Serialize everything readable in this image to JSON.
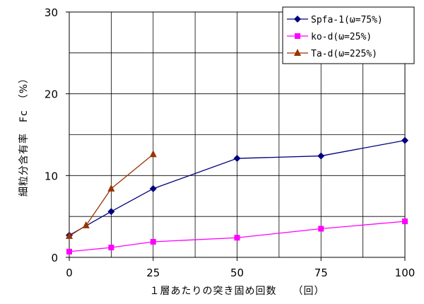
{
  "chart_data": {
    "type": "line",
    "title": "",
    "xlabel": "１層あたりの突き固め回数　　（回）",
    "ylabel": "細粒分含有率　Fc　（%）",
    "xlim": [
      0,
      100
    ],
    "ylim": [
      0,
      30
    ],
    "x_ticks": [
      "0",
      "25",
      "50",
      "75",
      "100"
    ],
    "y_ticks": [
      "0",
      "10",
      "20",
      "30"
    ],
    "grid": true,
    "legend_position": "top-right",
    "series": [
      {
        "name": "Spfa-1(ω=75%)",
        "color": "#000080",
        "marker": "diamond",
        "x": [
          0,
          12.5,
          25,
          50,
          75,
          100
        ],
        "y": [
          2.7,
          5.6,
          8.4,
          12.1,
          12.4,
          14.3
        ]
      },
      {
        "name": "ko-d(ω=25%)",
        "color": "#ff00ff",
        "marker": "square",
        "x": [
          0,
          12.5,
          25,
          50,
          75,
          100
        ],
        "y": [
          0.7,
          1.2,
          1.9,
          2.4,
          3.5,
          4.4
        ]
      },
      {
        "name": "Ta-d(ω=225%)",
        "color": "#993300",
        "marker": "triangle",
        "x": [
          0,
          5,
          12.5,
          25
        ],
        "y": [
          2.6,
          3.9,
          8.4,
          12.6
        ]
      }
    ]
  }
}
